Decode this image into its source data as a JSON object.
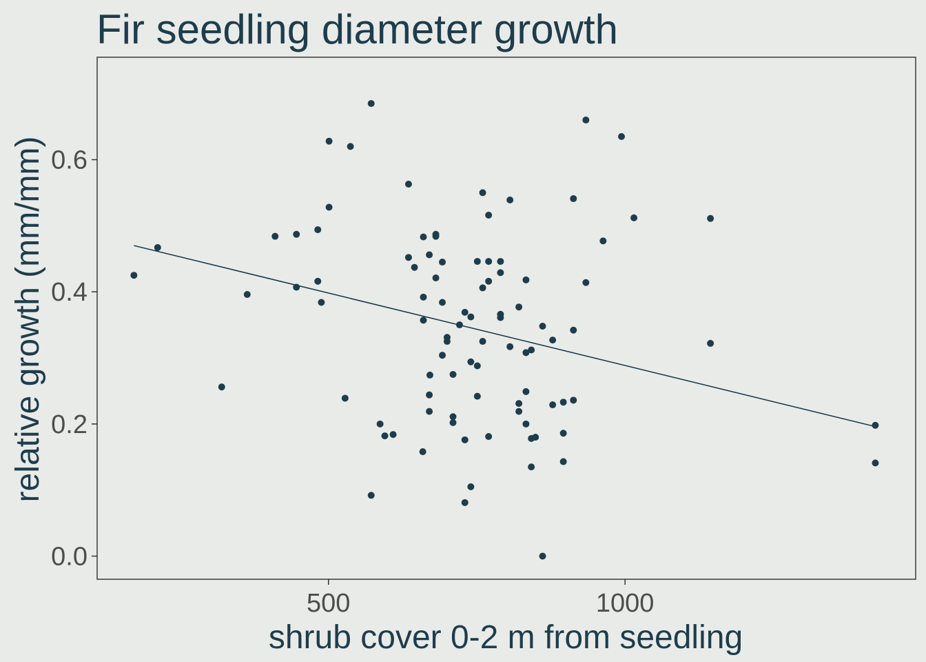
{
  "chart_data": {
    "type": "scatter",
    "title": "Fir seedling diameter growth",
    "xlabel": "shrub cover 0-2 m from seedling",
    "ylabel": "relative growth (mm/mm)",
    "xlim": [
      110,
      1490
    ],
    "ylim": [
      -0.035,
      0.755
    ],
    "x_ticks": [
      500,
      1000
    ],
    "y_ticks": [
      0.0,
      0.2,
      0.4,
      0.6
    ],
    "x_tick_labels": [
      "500",
      "1000"
    ],
    "y_tick_labels": [
      "0.0",
      "0.2",
      "0.4",
      "0.6"
    ],
    "grid": false,
    "legend": "none",
    "colors": {
      "background": "#e9ebe8",
      "panel_border": "#3a3a3a",
      "point": "#1e3d4c",
      "trend_line": "#1e3d4c",
      "title": "#1e3d4c",
      "tick_label": "#4d4d4d",
      "tick_mark": "#333333"
    },
    "trend_line": {
      "x": [
        172,
        1422
      ],
      "y": [
        0.47,
        0.196
      ]
    },
    "series": [
      {
        "points": [
          [
            172,
            0.425
          ],
          [
            212,
            0.467
          ],
          [
            320,
            0.256
          ],
          [
            363,
            0.396
          ],
          [
            410,
            0.484
          ],
          [
            446,
            0.487
          ],
          [
            446,
            0.407
          ],
          [
            482,
            0.494
          ],
          [
            482,
            0.416
          ],
          [
            488,
            0.384
          ],
          [
            501,
            0.628
          ],
          [
            501,
            0.528
          ],
          [
            528,
            0.239
          ],
          [
            537,
            0.62
          ],
          [
            572,
            0.685
          ],
          [
            572,
            0.092
          ],
          [
            587,
            0.2
          ],
          [
            595,
            0.182
          ],
          [
            609,
            0.184
          ],
          [
            635,
            0.563
          ],
          [
            635,
            0.452
          ],
          [
            645,
            0.437
          ],
          [
            660,
            0.483
          ],
          [
            660,
            0.392
          ],
          [
            660,
            0.357
          ],
          [
            659,
            0.158
          ],
          [
            670,
            0.456
          ],
          [
            671,
            0.274
          ],
          [
            670,
            0.244
          ],
          [
            670,
            0.219
          ],
          [
            681,
            0.487
          ],
          [
            681,
            0.484
          ],
          [
            681,
            0.421
          ],
          [
            692,
            0.445
          ],
          [
            692,
            0.384
          ],
          [
            692,
            0.304
          ],
          [
            700,
            0.331
          ],
          [
            700,
            0.325
          ],
          [
            710,
            0.275
          ],
          [
            710,
            0.211
          ],
          [
            710,
            0.202
          ],
          [
            721,
            0.35
          ],
          [
            730,
            0.369
          ],
          [
            730,
            0.176
          ],
          [
            730,
            0.081
          ],
          [
            740,
            0.362
          ],
          [
            740,
            0.294
          ],
          [
            740,
            0.105
          ],
          [
            751,
            0.446
          ],
          [
            751,
            0.288
          ],
          [
            751,
            0.242
          ],
          [
            760,
            0.55
          ],
          [
            760,
            0.406
          ],
          [
            760,
            0.325
          ],
          [
            770,
            0.516
          ],
          [
            770,
            0.446
          ],
          [
            770,
            0.416
          ],
          [
            770,
            0.181
          ],
          [
            790,
            0.446
          ],
          [
            790,
            0.429
          ],
          [
            790,
            0.366
          ],
          [
            790,
            0.361
          ],
          [
            806,
            0.539
          ],
          [
            806,
            0.317
          ],
          [
            821,
            0.377
          ],
          [
            821,
            0.231
          ],
          [
            821,
            0.219
          ],
          [
            833,
            0.418
          ],
          [
            833,
            0.308
          ],
          [
            833,
            0.249
          ],
          [
            833,
            0.2
          ],
          [
            842,
            0.312
          ],
          [
            842,
            0.178
          ],
          [
            842,
            0.135
          ],
          [
            849,
            0.18
          ],
          [
            861,
            0.0
          ],
          [
            861,
            0.348
          ],
          [
            878,
            0.327
          ],
          [
            878,
            0.229
          ],
          [
            896,
            0.233
          ],
          [
            896,
            0.186
          ],
          [
            896,
            0.143
          ],
          [
            913,
            0.541
          ],
          [
            913,
            0.342
          ],
          [
            913,
            0.236
          ],
          [
            934,
            0.66
          ],
          [
            934,
            0.414
          ],
          [
            963,
            0.477
          ],
          [
            994,
            0.635
          ],
          [
            1015,
            0.512
          ],
          [
            1144,
            0.511
          ],
          [
            1144,
            0.322
          ],
          [
            1422,
            0.198
          ],
          [
            1422,
            0.141
          ]
        ]
      }
    ]
  }
}
